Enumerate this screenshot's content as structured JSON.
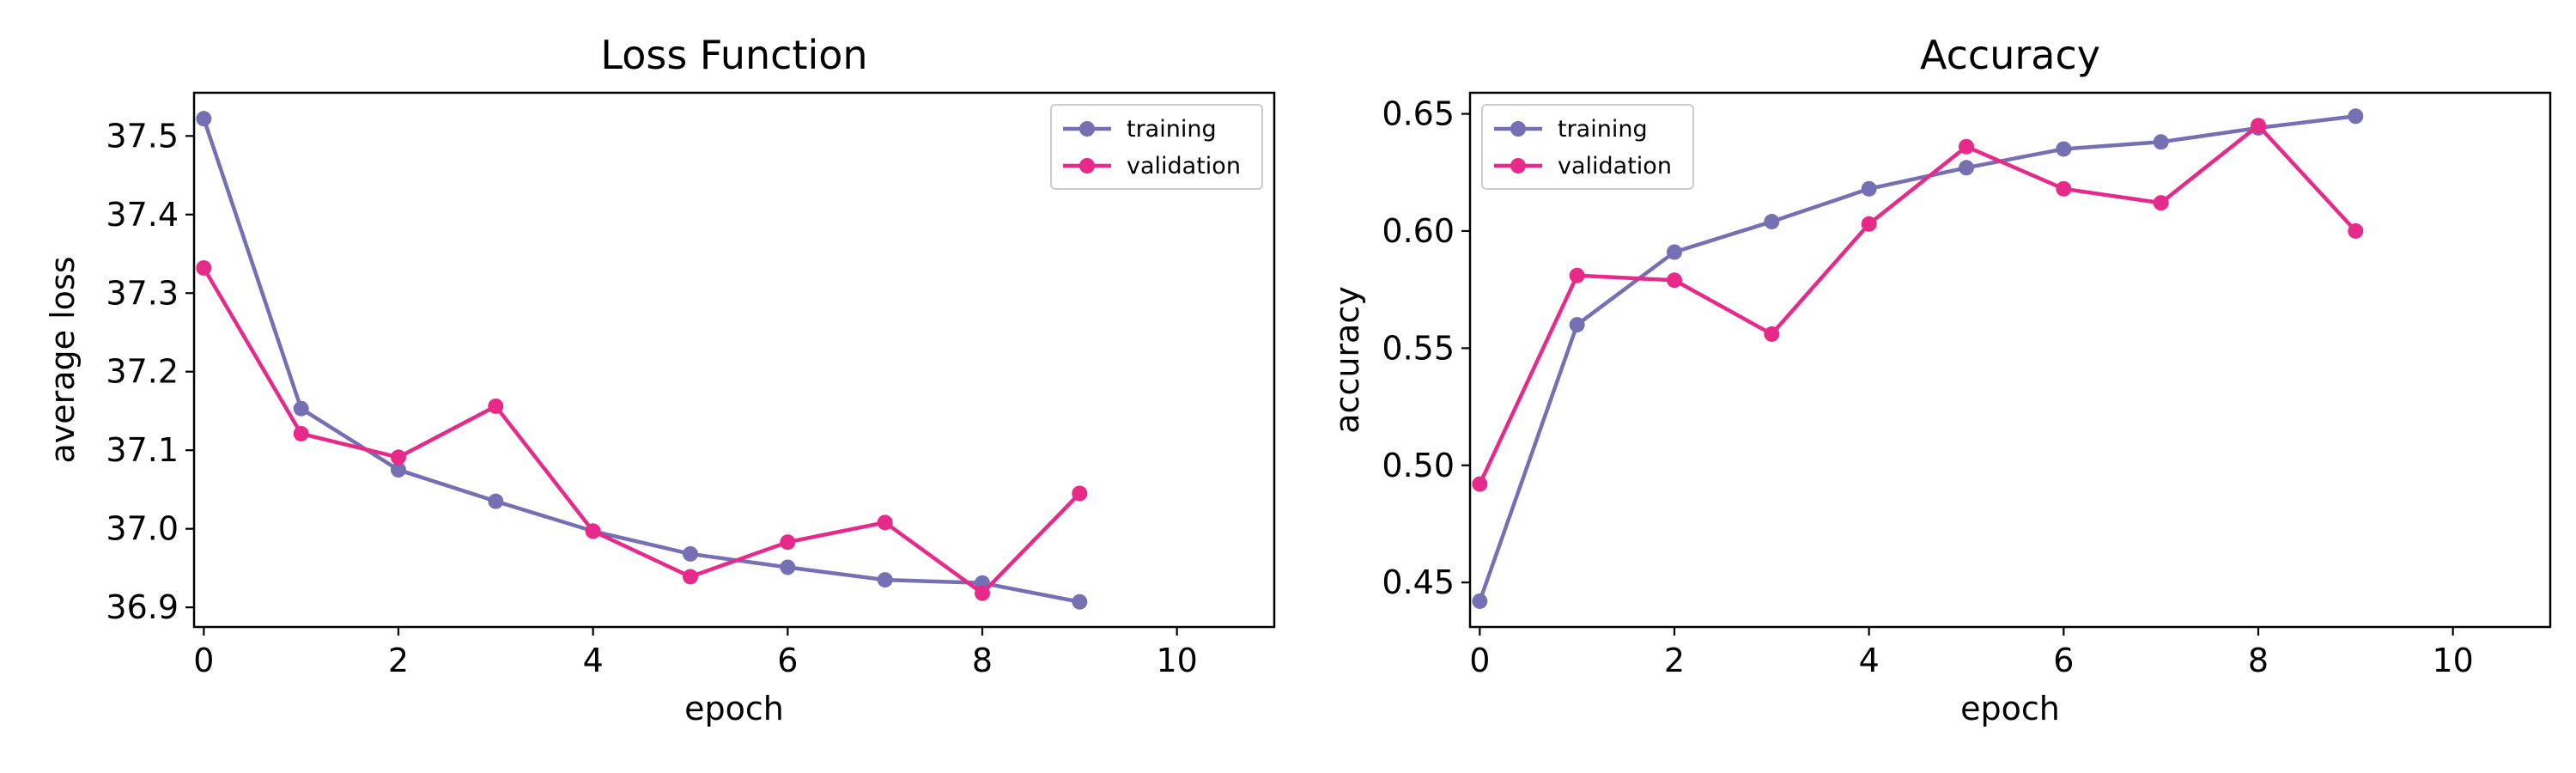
{
  "chart_data": [
    {
      "type": "line",
      "title": "Loss Function",
      "xlabel": "epoch",
      "ylabel": "average loss",
      "xlim": [
        -0.1,
        11
      ],
      "ylim": [
        36.875,
        37.555
      ],
      "xticks": [
        0,
        2,
        4,
        6,
        8,
        10
      ],
      "yticks": [
        36.9,
        37.0,
        37.1,
        37.2,
        37.3,
        37.4,
        37.5
      ],
      "ytick_decimals": 1,
      "legend_position": "top-right",
      "grid": false,
      "x": [
        0,
        1,
        2,
        3,
        4,
        5,
        6,
        7,
        8,
        9
      ],
      "series": [
        {
          "name": "training",
          "color": "#7570b3",
          "values": [
            37.522,
            37.153,
            37.075,
            37.035,
            36.997,
            36.968,
            36.951,
            36.935,
            36.931,
            36.907
          ]
        },
        {
          "name": "validation",
          "color": "#e7298a",
          "values": [
            37.332,
            37.121,
            37.091,
            37.156,
            36.997,
            36.939,
            36.983,
            37.008,
            36.918,
            37.045
          ]
        }
      ]
    },
    {
      "type": "line",
      "title": "Accuracy",
      "xlabel": "epoch",
      "ylabel": "accuracy",
      "xlim": [
        -0.1,
        11
      ],
      "ylim": [
        0.431,
        0.659
      ],
      "xticks": [
        0,
        2,
        4,
        6,
        8,
        10
      ],
      "yticks": [
        0.45,
        0.5,
        0.55,
        0.6,
        0.65
      ],
      "ytick_decimals": 2,
      "legend_position": "top-left",
      "grid": false,
      "x": [
        0,
        1,
        2,
        3,
        4,
        5,
        6,
        7,
        8,
        9
      ],
      "series": [
        {
          "name": "training",
          "color": "#7570b3",
          "values": [
            0.442,
            0.56,
            0.591,
            0.604,
            0.618,
            0.627,
            0.635,
            0.638,
            0.644,
            0.649
          ]
        },
        {
          "name": "validation",
          "color": "#e7298a",
          "values": [
            0.492,
            0.581,
            0.579,
            0.556,
            0.603,
            0.636,
            0.618,
            0.612,
            0.645,
            0.6
          ]
        }
      ]
    }
  ]
}
